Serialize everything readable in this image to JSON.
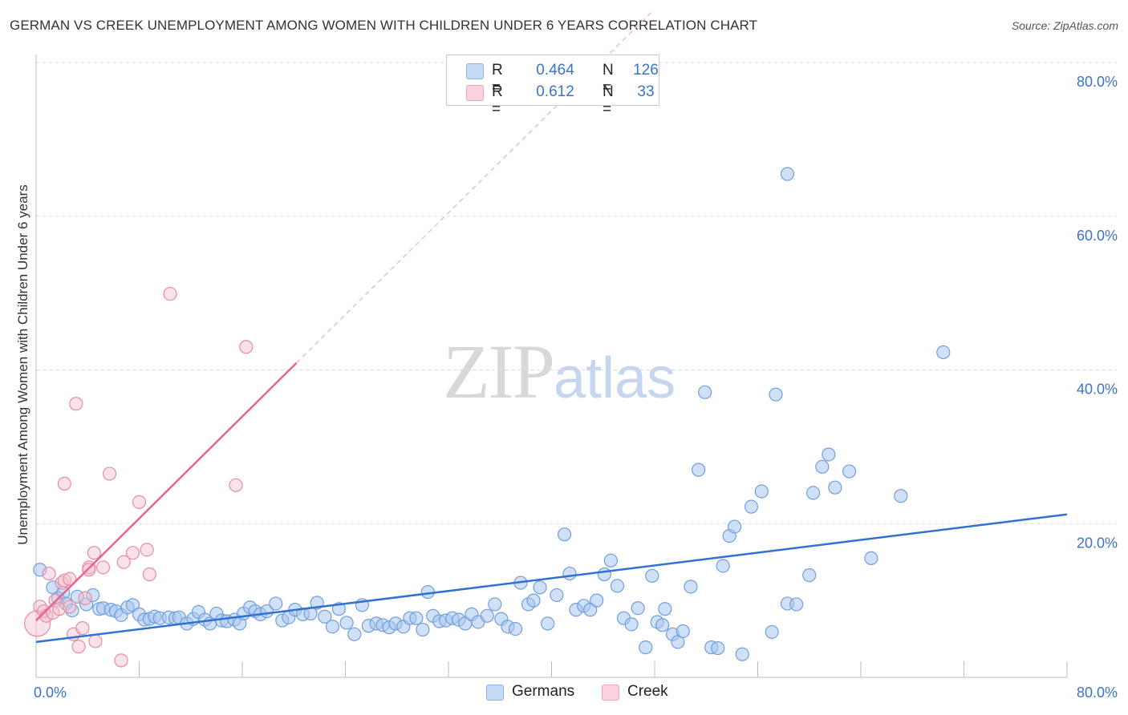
{
  "title": "GERMAN VS CREEK UNEMPLOYMENT AMONG WOMEN WITH CHILDREN UNDER 6 YEARS CORRELATION CHART",
  "source": "Source: ZipAtlas.com",
  "watermark": {
    "zip": "ZIP",
    "atlas": "atlas"
  },
  "colors": {
    "german": "#a9c7ef",
    "german_edge": "#6f9fdc",
    "german_line": "#2f72d1",
    "creek": "#f5bfcf",
    "creek_edge": "#e98aa8",
    "creek_line": "#e8638d",
    "axis_text": "#3a74c8",
    "grid": "#d9d9d9"
  },
  "legend": {
    "rows": [
      {
        "swatch_color": "#a9c7ef",
        "r_label": "R =",
        "r_value": "0.464",
        "n_label": "N =",
        "n_value": "126"
      },
      {
        "swatch_color": "#f5bfcf",
        "r_label": "R =",
        "r_value": "0.612",
        "n_label": "N =",
        "n_value": "33"
      }
    ]
  },
  "bottom_legend": [
    {
      "label": "Germans",
      "color": "#a9c7ef"
    },
    {
      "label": "Creek",
      "color": "#f5bfcf"
    }
  ],
  "chart_data": {
    "type": "scatter",
    "title": "GERMAN VS CREEK UNEMPLOYMENT AMONG WOMEN WITH CHILDREN UNDER 6 YEARS CORRELATION CHART",
    "xlabel": "",
    "ylabel": "Unemployment Among Women with Children Under 6 years",
    "xlim": [
      0,
      80
    ],
    "ylim": [
      0,
      80
    ],
    "x_tick_labels": [
      "0.0%",
      "80.0%"
    ],
    "y_tick_labels": [
      "20.0%",
      "40.0%",
      "60.0%",
      "80.0%"
    ],
    "y_ticks": [
      20,
      40,
      60,
      80
    ],
    "grid": true,
    "legend_position": "top-center",
    "series": [
      {
        "name": "Germans",
        "r": 0.464,
        "n": 126,
        "trend": {
          "x": [
            0,
            80
          ],
          "y": [
            4.6,
            21.2
          ],
          "style": "solid"
        },
        "points": [
          [
            0.3,
            14.0
          ],
          [
            1.3,
            11.7
          ],
          [
            1.7,
            10.3
          ],
          [
            2.1,
            11.0
          ],
          [
            2.3,
            9.6
          ],
          [
            2.8,
            8.7
          ],
          [
            3.2,
            10.5
          ],
          [
            3.9,
            9.5
          ],
          [
            4.4,
            10.7
          ],
          [
            4.9,
            8.9
          ],
          [
            5.2,
            9.0
          ],
          [
            5.8,
            8.8
          ],
          [
            6.2,
            8.6
          ],
          [
            6.6,
            8.1
          ],
          [
            7.1,
            9.1
          ],
          [
            7.5,
            9.4
          ],
          [
            8.0,
            8.2
          ],
          [
            8.4,
            7.5
          ],
          [
            8.8,
            7.6
          ],
          [
            9.2,
            7.9
          ],
          [
            9.6,
            7.7
          ],
          [
            10.3,
            7.8
          ],
          [
            10.8,
            7.7
          ],
          [
            11.1,
            7.8
          ],
          [
            11.7,
            7.0
          ],
          [
            12.2,
            7.6
          ],
          [
            12.6,
            8.5
          ],
          [
            13.1,
            7.5
          ],
          [
            13.5,
            7.0
          ],
          [
            14.0,
            8.3
          ],
          [
            14.4,
            7.4
          ],
          [
            14.8,
            7.3
          ],
          [
            15.4,
            7.5
          ],
          [
            15.8,
            7.0
          ],
          [
            16.1,
            8.3
          ],
          [
            16.6,
            9.1
          ],
          [
            17.0,
            8.6
          ],
          [
            17.4,
            8.2
          ],
          [
            17.9,
            8.6
          ],
          [
            18.6,
            9.6
          ],
          [
            19.1,
            7.4
          ],
          [
            19.6,
            7.8
          ],
          [
            20.1,
            8.8
          ],
          [
            20.7,
            8.2
          ],
          [
            21.3,
            8.3
          ],
          [
            21.8,
            9.7
          ],
          [
            22.4,
            7.9
          ],
          [
            23.0,
            6.6
          ],
          [
            23.5,
            8.9
          ],
          [
            24.1,
            7.1
          ],
          [
            24.7,
            5.6
          ],
          [
            25.3,
            9.4
          ],
          [
            25.8,
            6.7
          ],
          [
            26.4,
            7.0
          ],
          [
            26.9,
            6.8
          ],
          [
            27.4,
            6.5
          ],
          [
            27.9,
            7.0
          ],
          [
            28.5,
            6.6
          ],
          [
            29.0,
            7.7
          ],
          [
            29.5,
            7.7
          ],
          [
            30.0,
            6.2
          ],
          [
            30.4,
            11.1
          ],
          [
            30.8,
            8.0
          ],
          [
            31.3,
            7.3
          ],
          [
            31.8,
            7.4
          ],
          [
            32.3,
            7.7
          ],
          [
            32.8,
            7.5
          ],
          [
            33.3,
            7.0
          ],
          [
            33.8,
            8.2
          ],
          [
            34.3,
            7.2
          ],
          [
            35.0,
            8.0
          ],
          [
            35.6,
            9.5
          ],
          [
            36.1,
            7.6
          ],
          [
            36.6,
            6.6
          ],
          [
            37.2,
            6.3
          ],
          [
            37.6,
            12.3
          ],
          [
            38.2,
            9.5
          ],
          [
            38.6,
            10.0
          ],
          [
            39.1,
            11.7
          ],
          [
            39.7,
            7.0
          ],
          [
            40.4,
            10.7
          ],
          [
            41.0,
            18.6
          ],
          [
            41.4,
            13.5
          ],
          [
            41.9,
            8.8
          ],
          [
            42.5,
            9.3
          ],
          [
            43.0,
            8.8
          ],
          [
            43.5,
            10.0
          ],
          [
            44.1,
            13.4
          ],
          [
            44.6,
            15.2
          ],
          [
            45.1,
            11.9
          ],
          [
            45.6,
            7.7
          ],
          [
            46.2,
            6.9
          ],
          [
            46.7,
            9.0
          ],
          [
            47.3,
            3.9
          ],
          [
            47.8,
            13.2
          ],
          [
            48.2,
            7.2
          ],
          [
            48.8,
            8.9
          ],
          [
            49.4,
            5.6
          ],
          [
            49.8,
            4.6
          ],
          [
            50.2,
            6.0
          ],
          [
            50.8,
            11.8
          ],
          [
            51.9,
            37.1
          ],
          [
            51.4,
            27.0
          ],
          [
            52.4,
            3.9
          ],
          [
            52.9,
            3.8
          ],
          [
            53.3,
            14.5
          ],
          [
            53.8,
            18.4
          ],
          [
            54.2,
            19.6
          ],
          [
            54.8,
            3.0
          ],
          [
            55.5,
            22.2
          ],
          [
            56.3,
            24.2
          ],
          [
            57.1,
            5.9
          ],
          [
            57.4,
            36.8
          ],
          [
            58.3,
            65.5
          ],
          [
            58.3,
            9.6
          ],
          [
            59.0,
            9.5
          ],
          [
            60.0,
            13.3
          ],
          [
            60.3,
            24.0
          ],
          [
            61.0,
            27.4
          ],
          [
            61.5,
            29.0
          ],
          [
            62.0,
            24.7
          ],
          [
            63.1,
            26.8
          ],
          [
            64.8,
            15.5
          ],
          [
            67.1,
            23.6
          ],
          [
            70.4,
            42.3
          ],
          [
            48.6,
            6.8
          ]
        ]
      },
      {
        "name": "Creek",
        "r": 0.612,
        "n": 33,
        "trend": {
          "x": [
            0,
            20.2
          ],
          "y": [
            7.4,
            40.9
          ],
          "style": "solid"
        },
        "trend_extension": {
          "x": [
            20.2,
            80
          ],
          "y": [
            40.9,
            140
          ],
          "style": "dashed"
        },
        "points": [
          [
            0.1,
            7.0
          ],
          [
            0.3,
            9.2
          ],
          [
            0.6,
            8.6
          ],
          [
            0.8,
            8.0
          ],
          [
            1.0,
            13.5
          ],
          [
            1.3,
            8.4
          ],
          [
            1.5,
            10.0
          ],
          [
            1.8,
            8.9
          ],
          [
            2.0,
            12.3
          ],
          [
            2.2,
            12.6
          ],
          [
            2.2,
            25.2
          ],
          [
            2.6,
            9.2
          ],
          [
            2.6,
            12.8
          ],
          [
            2.9,
            5.6
          ],
          [
            3.1,
            35.6
          ],
          [
            3.3,
            4.0
          ],
          [
            3.6,
            6.4
          ],
          [
            3.8,
            10.3
          ],
          [
            4.1,
            14.3
          ],
          [
            4.1,
            14.0
          ],
          [
            4.5,
            16.2
          ],
          [
            4.6,
            4.7
          ],
          [
            5.2,
            14.3
          ],
          [
            5.7,
            26.5
          ],
          [
            6.6,
            2.2
          ],
          [
            6.8,
            15.0
          ],
          [
            7.5,
            16.2
          ],
          [
            8.0,
            22.8
          ],
          [
            8.6,
            16.6
          ],
          [
            8.8,
            13.4
          ],
          [
            10.4,
            49.9
          ],
          [
            15.5,
            25.0
          ],
          [
            16.3,
            43.0
          ]
        ]
      }
    ]
  }
}
